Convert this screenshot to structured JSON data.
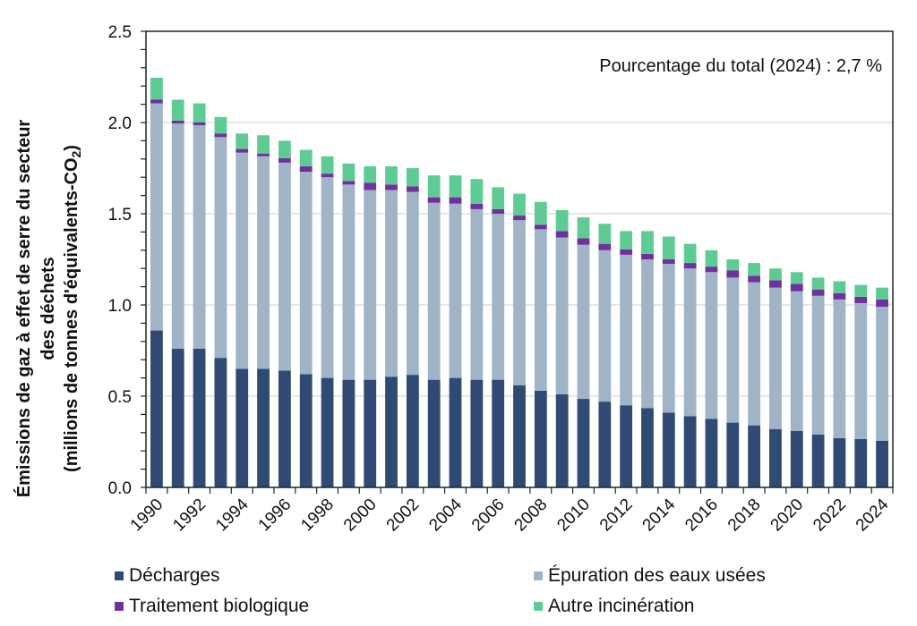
{
  "chart_data": {
    "type": "bar",
    "stacked": true,
    "title": "",
    "annotation": "Pourcentage du total (2024) : 2,7 %",
    "xlabel": "",
    "ylabel_lines": [
      "Émissions  de gaz à effet de serre du secteur",
      "des déchets",
      "(millions de tonnes d'équivalents-CO",
      "2",
      ")"
    ],
    "ylim": [
      0,
      2.5
    ],
    "yticks": [
      "0.0",
      "0.5",
      "1.0",
      "1.5",
      "2.0",
      "2.5"
    ],
    "ytick_values": [
      0,
      0.5,
      1.0,
      1.5,
      2.0,
      2.5
    ],
    "grid": true,
    "legend_position": "bottom",
    "categories": [
      "1990",
      "1991",
      "1992",
      "1993",
      "1994",
      "1995",
      "1996",
      "1997",
      "1998",
      "1999",
      "2000",
      "2001",
      "2002",
      "2003",
      "2004",
      "2005",
      "2006",
      "2007",
      "2008",
      "2009",
      "2010",
      "2011",
      "2012",
      "2013",
      "2014",
      "2015",
      "2016",
      "2017",
      "2018",
      "2019",
      "2020",
      "2021",
      "2022",
      "2023",
      "2024"
    ],
    "xtick_labels": [
      "1990",
      "1992",
      "1994",
      "1996",
      "1998",
      "2000",
      "2002",
      "2004",
      "2006",
      "2008",
      "2010",
      "2012",
      "2014",
      "2016",
      "2018",
      "2020",
      "2022",
      "2024"
    ],
    "series": [
      {
        "name": "Décharges",
        "color": "#2f4b73",
        "values": [
          0.86,
          0.76,
          0.76,
          0.71,
          0.65,
          0.65,
          0.64,
          0.62,
          0.6,
          0.59,
          0.59,
          0.607,
          0.617,
          0.59,
          0.6,
          0.59,
          0.59,
          0.56,
          0.53,
          0.51,
          0.485,
          0.47,
          0.45,
          0.435,
          0.41,
          0.39,
          0.375,
          0.355,
          0.34,
          0.32,
          0.31,
          0.29,
          0.27,
          0.265,
          0.255
        ]
      },
      {
        "name": "Épuration des eaux usées",
        "color": "#9fb4c7",
        "values": [
          1.245,
          1.235,
          1.225,
          1.21,
          1.185,
          1.165,
          1.14,
          1.11,
          1.1,
          1.07,
          1.04,
          1.023,
          1.003,
          0.97,
          0.955,
          0.935,
          0.91,
          0.905,
          0.885,
          0.86,
          0.845,
          0.83,
          0.825,
          0.815,
          0.815,
          0.81,
          0.805,
          0.795,
          0.785,
          0.775,
          0.765,
          0.76,
          0.76,
          0.745,
          0.735
        ]
      },
      {
        "name": "Traitement biologique",
        "color": "#7030a0",
        "values": [
          0.02,
          0.015,
          0.015,
          0.02,
          0.02,
          0.015,
          0.025,
          0.03,
          0.02,
          0.02,
          0.04,
          0.03,
          0.03,
          0.03,
          0.035,
          0.03,
          0.025,
          0.025,
          0.025,
          0.035,
          0.035,
          0.035,
          0.03,
          0.03,
          0.025,
          0.03,
          0.03,
          0.04,
          0.035,
          0.04,
          0.04,
          0.035,
          0.035,
          0.035,
          0.04
        ]
      },
      {
        "name": "Autre incinération",
        "color": "#5ecb93",
        "values": [
          0.12,
          0.115,
          0.105,
          0.09,
          0.085,
          0.1,
          0.095,
          0.09,
          0.095,
          0.095,
          0.09,
          0.1,
          0.1,
          0.12,
          0.12,
          0.135,
          0.12,
          0.12,
          0.125,
          0.115,
          0.115,
          0.11,
          0.1,
          0.125,
          0.125,
          0.105,
          0.09,
          0.06,
          0.07,
          0.065,
          0.065,
          0.065,
          0.065,
          0.065,
          0.065
        ]
      }
    ]
  }
}
